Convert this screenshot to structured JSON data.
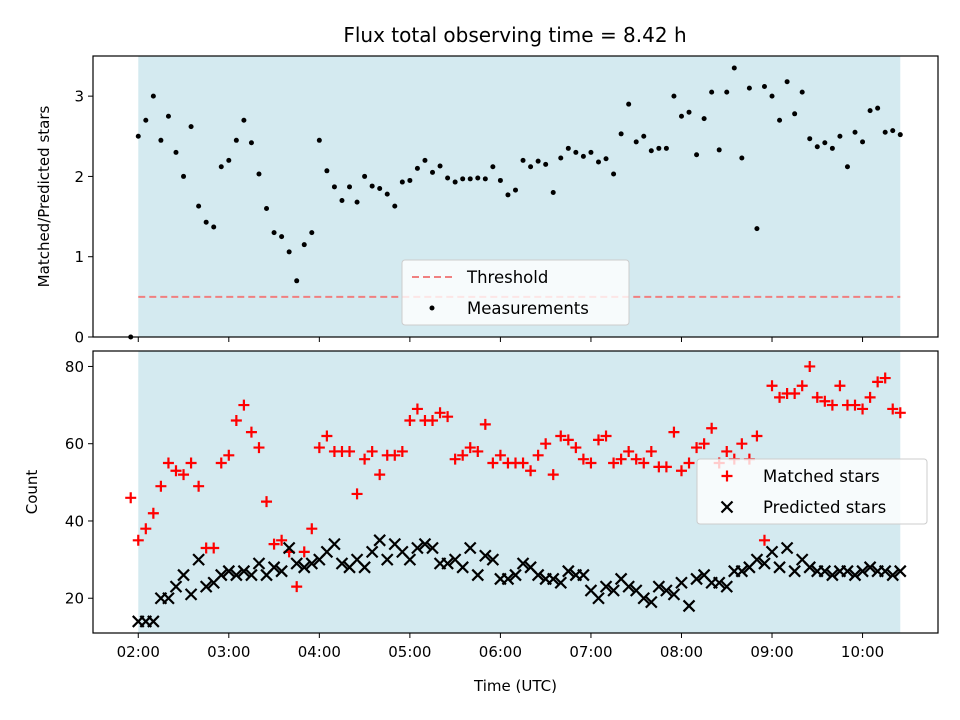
{
  "chart_data": [
    {
      "type": "scatter",
      "title": "Flux total observing time = 8.42 h",
      "xlabel": "",
      "ylabel": "Matched/Predicted stars",
      "ylim": [
        0,
        3.5
      ],
      "yticks": [
        0,
        1,
        2,
        3
      ],
      "shaded_span": {
        "start": "02:00",
        "end": "10:25",
        "color": "#d4eaf0"
      },
      "threshold": {
        "name": "Threshold",
        "value": 0.5,
        "color": "#f08080",
        "style": "dashed"
      },
      "series": [
        {
          "name": "Measurements",
          "color": "#000000",
          "marker": "dot",
          "x": [
            "01:55",
            "02:00",
            "02:05",
            "02:10",
            "02:15",
            "02:20",
            "02:25",
            "02:30",
            "02:35",
            "02:40",
            "02:45",
            "02:50",
            "02:55",
            "03:00",
            "03:05",
            "03:10",
            "03:15",
            "03:20",
            "03:25",
            "03:30",
            "03:35",
            "03:40",
            "03:45",
            "03:50",
            "03:55",
            "04:00",
            "04:05",
            "04:10",
            "04:15",
            "04:20",
            "04:25",
            "04:30",
            "04:35",
            "04:40",
            "04:45",
            "04:50",
            "04:55",
            "05:00",
            "05:05",
            "05:10",
            "05:15",
            "05:20",
            "05:25",
            "05:30",
            "05:35",
            "05:40",
            "05:45",
            "05:50",
            "05:55",
            "06:00",
            "06:05",
            "06:10",
            "06:15",
            "06:20",
            "06:25",
            "06:30",
            "06:35",
            "06:40",
            "06:45",
            "06:50",
            "06:55",
            "07:00",
            "07:05",
            "07:10",
            "07:15",
            "07:20",
            "07:25",
            "07:30",
            "07:35",
            "07:40",
            "07:45",
            "07:50",
            "07:55",
            "08:00",
            "08:05",
            "08:10",
            "08:15",
            "08:20",
            "08:25",
            "08:30",
            "08:35",
            "08:40",
            "08:45",
            "08:50",
            "08:55",
            "09:00",
            "09:05",
            "09:10",
            "09:15",
            "09:20",
            "09:25",
            "09:30",
            "09:35",
            "09:40",
            "09:45",
            "09:50",
            "09:55",
            "10:00",
            "10:05",
            "10:10",
            "10:15",
            "10:20",
            "10:25"
          ],
          "y": [
            0.0,
            2.5,
            2.7,
            3.0,
            2.45,
            2.75,
            2.3,
            2.0,
            2.62,
            1.63,
            1.43,
            1.37,
            2.12,
            2.2,
            2.45,
            2.7,
            2.42,
            2.03,
            1.6,
            1.3,
            1.25,
            1.06,
            0.7,
            1.15,
            1.3,
            2.45,
            2.07,
            1.87,
            1.7,
            1.87,
            1.68,
            2.0,
            1.88,
            1.85,
            1.78,
            1.63,
            1.93,
            1.95,
            2.1,
            2.2,
            2.05,
            2.13,
            1.98,
            1.93,
            1.97,
            1.97,
            1.98,
            1.97,
            2.12,
            1.95,
            1.77,
            1.83,
            2.2,
            2.12,
            2.19,
            2.15,
            1.8,
            2.23,
            2.35,
            2.3,
            2.25,
            2.3,
            2.18,
            2.22,
            2.03,
            2.53,
            2.9,
            2.43,
            2.5,
            2.32,
            2.35,
            2.35,
            3.0,
            2.75,
            2.8,
            2.27,
            2.72,
            3.05,
            2.33,
            3.05,
            3.35,
            2.23,
            3.1,
            1.35,
            3.12,
            3.0,
            2.7,
            3.18,
            2.78,
            3.05,
            2.47,
            2.37,
            2.42,
            2.35,
            2.5,
            2.12,
            2.55,
            2.43,
            2.82,
            2.85,
            2.55,
            2.57,
            2.52
          ]
        }
      ],
      "legend": {
        "entries": [
          "Threshold",
          "Measurements"
        ],
        "placement": "lower-center"
      },
      "grid": false
    },
    {
      "type": "scatter",
      "title": "",
      "xlabel": "Time (UTC)",
      "ylabel": "Count",
      "ylim": [
        11,
        84
      ],
      "yticks": [
        20,
        40,
        60,
        80
      ],
      "xlim": [
        "01:30",
        "10:50"
      ],
      "xticks": [
        "02:00",
        "03:00",
        "04:00",
        "05:00",
        "06:00",
        "07:00",
        "08:00",
        "09:00",
        "10:00"
      ],
      "shaded_span": {
        "start": "02:00",
        "end": "10:25",
        "color": "#d4eaf0"
      },
      "series": [
        {
          "name": "Matched stars",
          "color": "#ff0000",
          "marker": "plus",
          "x": [
            "01:55",
            "02:00",
            "02:05",
            "02:10",
            "02:15",
            "02:20",
            "02:25",
            "02:30",
            "02:35",
            "02:40",
            "02:45",
            "02:50",
            "02:55",
            "03:00",
            "03:05",
            "03:10",
            "03:15",
            "03:20",
            "03:25",
            "03:30",
            "03:35",
            "03:40",
            "03:45",
            "03:50",
            "03:55",
            "04:00",
            "04:05",
            "04:10",
            "04:15",
            "04:20",
            "04:25",
            "04:30",
            "04:35",
            "04:40",
            "04:45",
            "04:50",
            "04:55",
            "05:00",
            "05:05",
            "05:10",
            "05:15",
            "05:20",
            "05:25",
            "05:30",
            "05:35",
            "05:40",
            "05:45",
            "05:50",
            "05:55",
            "06:00",
            "06:05",
            "06:10",
            "06:15",
            "06:20",
            "06:25",
            "06:30",
            "06:35",
            "06:40",
            "06:45",
            "06:50",
            "06:55",
            "07:00",
            "07:05",
            "07:10",
            "07:15",
            "07:20",
            "07:25",
            "07:30",
            "07:35",
            "07:40",
            "07:45",
            "07:50",
            "07:55",
            "08:00",
            "08:05",
            "08:10",
            "08:15",
            "08:20",
            "08:25",
            "08:30",
            "08:35",
            "08:40",
            "08:45",
            "08:50",
            "08:55",
            "09:00",
            "09:05",
            "09:10",
            "09:15",
            "09:20",
            "09:25",
            "09:30",
            "09:35",
            "09:40",
            "09:45",
            "09:50",
            "09:55",
            "10:00",
            "10:05",
            "10:10",
            "10:15",
            "10:20",
            "10:25"
          ],
          "y": [
            46,
            35,
            38,
            42,
            49,
            55,
            53,
            52,
            55,
            49,
            33,
            33,
            55,
            57,
            66,
            70,
            63,
            59,
            45,
            34,
            35,
            32,
            23,
            32,
            38,
            59,
            62,
            58,
            58,
            58,
            47,
            56,
            58,
            52,
            57,
            57,
            58,
            66,
            69,
            66,
            66,
            68,
            67,
            56,
            57,
            59,
            58,
            65,
            55,
            57,
            55,
            55,
            55,
            53,
            57,
            60,
            52,
            62,
            61,
            59,
            56,
            55,
            61,
            62,
            55,
            56,
            58,
            56,
            55,
            58,
            54,
            54,
            63,
            53,
            55,
            59,
            60,
            64,
            55,
            58,
            56,
            60,
            56,
            62,
            35,
            75,
            72,
            73,
            73,
            75,
            80,
            72,
            71,
            70,
            75,
            70,
            70,
            69,
            72,
            76,
            77,
            69,
            68
          ]
        },
        {
          "name": "Predicted stars",
          "color": "#000000",
          "marker": "x",
          "x": [
            "02:00",
            "02:05",
            "02:10",
            "02:15",
            "02:20",
            "02:25",
            "02:30",
            "02:35",
            "02:40",
            "02:45",
            "02:50",
            "02:55",
            "03:00",
            "03:05",
            "03:10",
            "03:15",
            "03:20",
            "03:25",
            "03:30",
            "03:35",
            "03:40",
            "03:45",
            "03:50",
            "03:55",
            "04:00",
            "04:05",
            "04:10",
            "04:15",
            "04:20",
            "04:25",
            "04:30",
            "04:35",
            "04:40",
            "04:45",
            "04:50",
            "04:55",
            "05:00",
            "05:05",
            "05:10",
            "05:15",
            "05:20",
            "05:25",
            "05:30",
            "05:35",
            "05:40",
            "05:45",
            "05:50",
            "05:55",
            "06:00",
            "06:05",
            "06:10",
            "06:15",
            "06:20",
            "06:25",
            "06:30",
            "06:35",
            "06:40",
            "06:45",
            "06:50",
            "06:55",
            "07:00",
            "07:05",
            "07:10",
            "07:15",
            "07:20",
            "07:25",
            "07:30",
            "07:35",
            "07:40",
            "07:45",
            "07:50",
            "07:55",
            "08:00",
            "08:05",
            "08:10",
            "08:15",
            "08:20",
            "08:25",
            "08:30",
            "08:35",
            "08:40",
            "08:45",
            "08:50",
            "08:55",
            "09:00",
            "09:05",
            "09:10",
            "09:15",
            "09:20",
            "09:25",
            "09:30",
            "09:35",
            "09:40",
            "09:45",
            "09:50",
            "09:55",
            "10:00",
            "10:05",
            "10:10",
            "10:15",
            "10:20",
            "10:25"
          ],
          "y": [
            14,
            14,
            14,
            20,
            20,
            23,
            26,
            21,
            30,
            23,
            24,
            26,
            27,
            26,
            27,
            26,
            29,
            26,
            28,
            27,
            33,
            29,
            28,
            29,
            30,
            32,
            34,
            29,
            28,
            30,
            28,
            32,
            35,
            30,
            34,
            32,
            30,
            33,
            34,
            33,
            29,
            29,
            30,
            28,
            33,
            26,
            31,
            30,
            25,
            25,
            26,
            29,
            28,
            26,
            25,
            25,
            24,
            27,
            26,
            26,
            22,
            20,
            23,
            22,
            25,
            23,
            22,
            20,
            19,
            23,
            22,
            21,
            24,
            18,
            25,
            26,
            24,
            24,
            23,
            27,
            27,
            28,
            30,
            29,
            32,
            28,
            33,
            27,
            30,
            28,
            27,
            27,
            26,
            27,
            27,
            26,
            27,
            28,
            27,
            27,
            26,
            27
          ]
        }
      ],
      "legend": {
        "entries": [
          "Matched stars",
          "Predicted stars"
        ],
        "placement": "center-right"
      },
      "grid": false
    }
  ]
}
